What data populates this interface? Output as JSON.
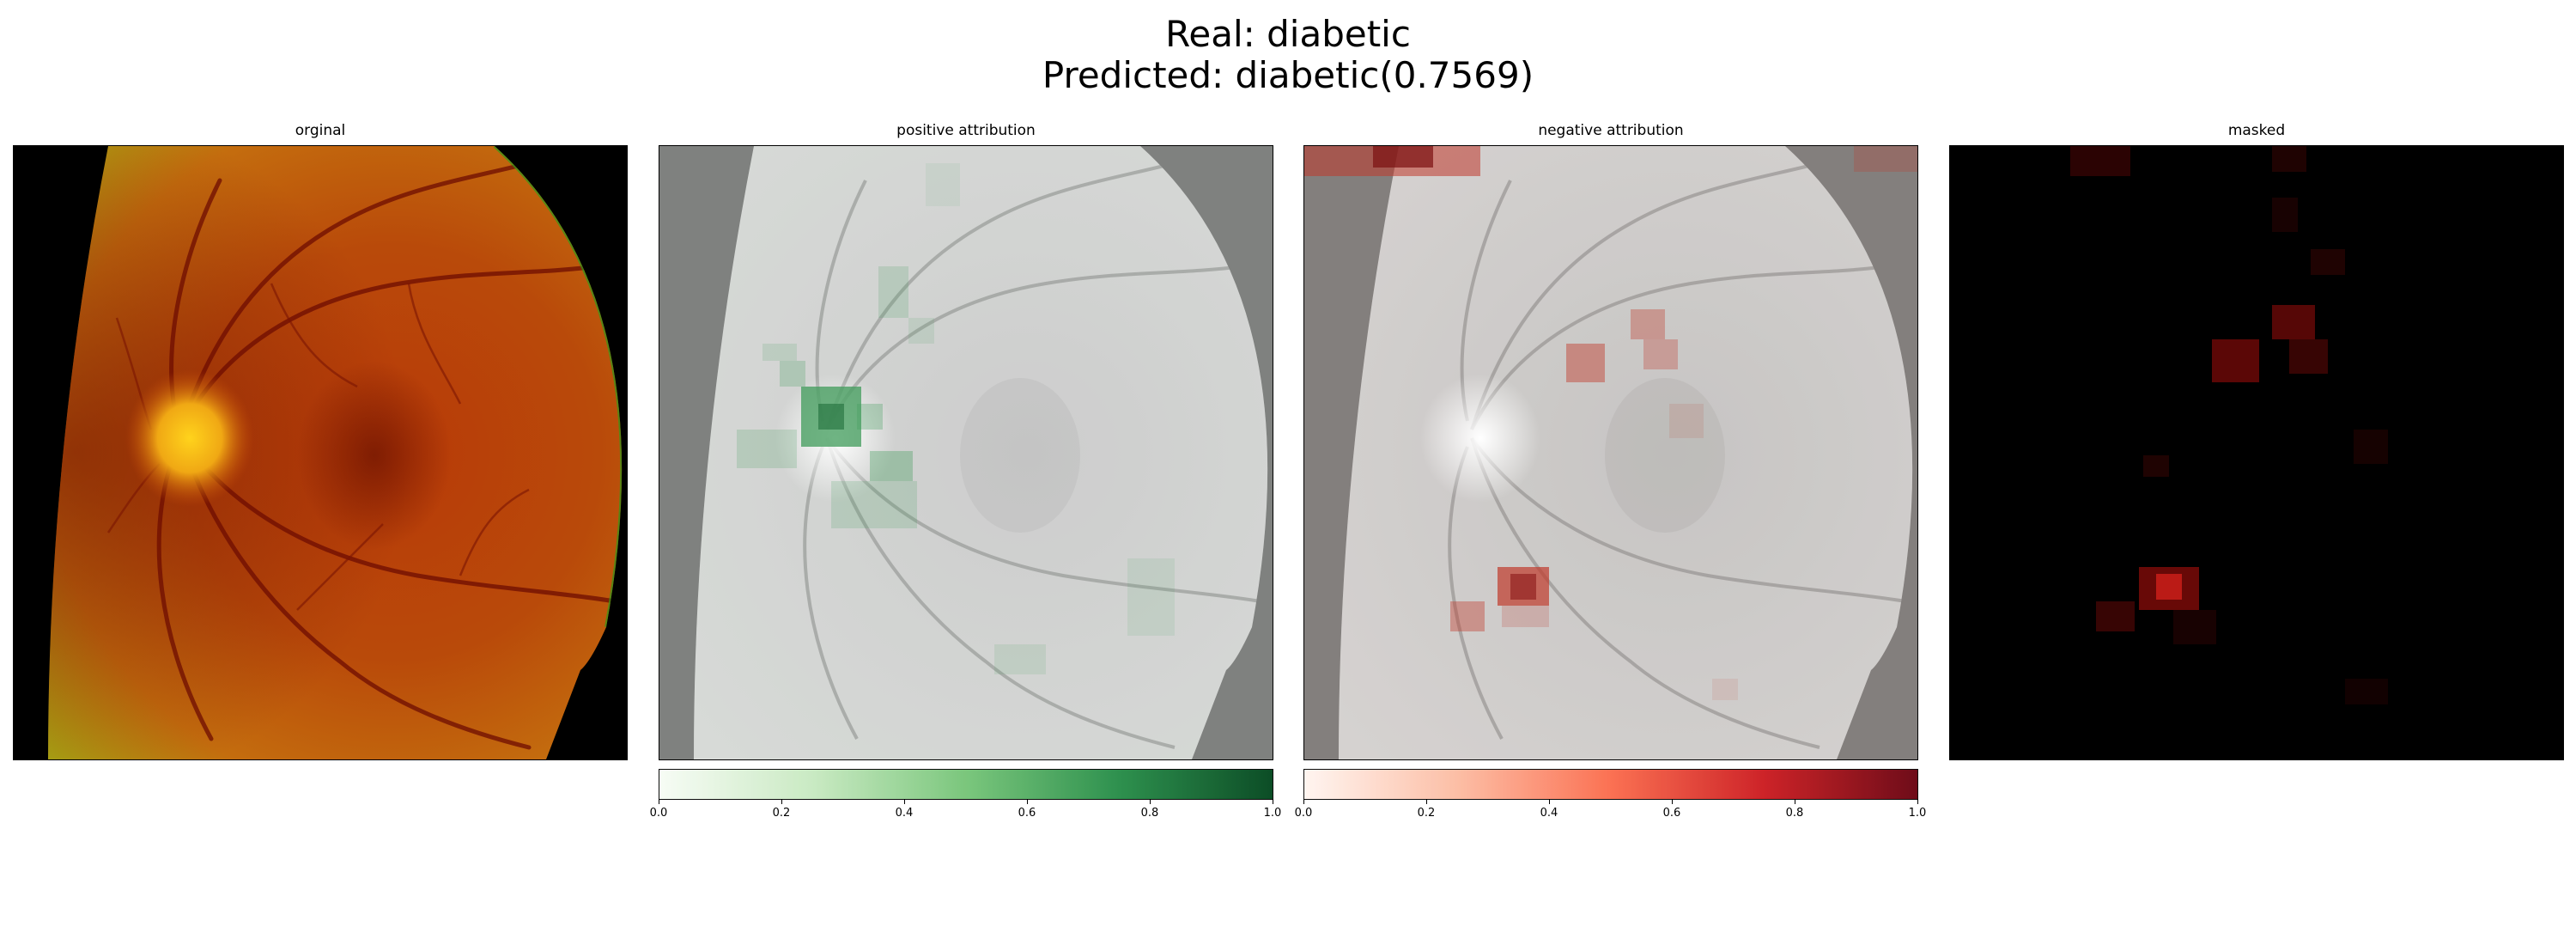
{
  "figure": {
    "title_line1": "Real: diabetic",
    "title_line2": "Predicted: diabetic(0.7569)"
  },
  "panels": [
    {
      "title": "orginal"
    },
    {
      "title": "positive attribution"
    },
    {
      "title": "negative attribution"
    },
    {
      "title": "masked"
    }
  ],
  "colorbars": {
    "positive": {
      "colormap": "Greens",
      "range": [
        0.0,
        1.0
      ],
      "ticks": [
        "0.0",
        "0.2",
        "0.4",
        "0.6",
        "0.8",
        "1.0"
      ]
    },
    "negative": {
      "colormap": "Reds",
      "range": [
        0.0,
        1.0
      ],
      "ticks": [
        "0.0",
        "0.2",
        "0.4",
        "0.6",
        "0.8",
        "1.0"
      ]
    }
  }
}
